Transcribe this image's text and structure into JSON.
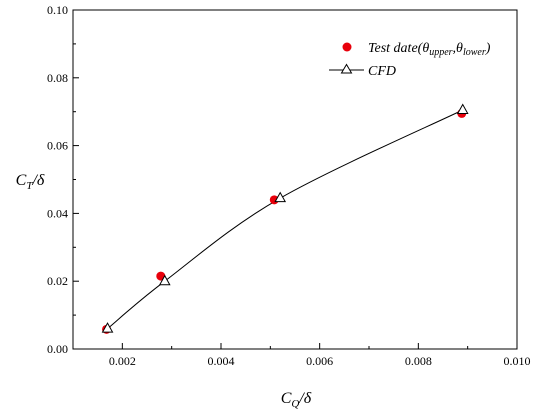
{
  "chart_data": {
    "type": "scatter",
    "x_axis": {
      "label_main": "C",
      "label_sub": "Q",
      "label_tail": "/δ",
      "range": [
        0.001,
        0.01
      ],
      "ticks": [
        "0.002",
        "0.004",
        "0.006",
        "0.008",
        "0.010"
      ],
      "tick_values": [
        0.002,
        0.004,
        0.006,
        0.008,
        0.01
      ],
      "minor_tick_values": [
        0.001,
        0.003,
        0.005,
        0.007,
        0.009
      ]
    },
    "y_axis": {
      "label_main": "C",
      "label_sub": "T",
      "label_tail": "/δ",
      "range": [
        0.0,
        0.1
      ],
      "ticks": [
        "0.00",
        "0.02",
        "0.04",
        "0.06",
        "0.08",
        "0.10"
      ],
      "tick_values": [
        0.0,
        0.02,
        0.04,
        0.06,
        0.08,
        0.1
      ],
      "minor_tick_values": [
        0.01,
        0.03,
        0.05,
        0.07,
        0.09
      ]
    },
    "grid": false,
    "legend_position": "top-right",
    "series": [
      {
        "legend_prefix": "Test date(θ",
        "legend_sub1": "upper",
        "legend_mid": ",θ",
        "legend_sub2": "lower",
        "legend_suffix": ")",
        "marker": "circle",
        "color": "#e8000b",
        "line": false,
        "x": [
          0.00168,
          0.00278,
          0.00508,
          0.00888
        ],
        "y": [
          0.0058,
          0.0215,
          0.044,
          0.0695
        ]
      },
      {
        "name": "CFD",
        "marker": "triangle-open",
        "color": "#000000",
        "line": true,
        "x": [
          0.0017,
          0.00286,
          0.0052,
          0.0089
        ],
        "y": [
          0.006,
          0.02,
          0.0445,
          0.0705
        ]
      }
    ]
  }
}
